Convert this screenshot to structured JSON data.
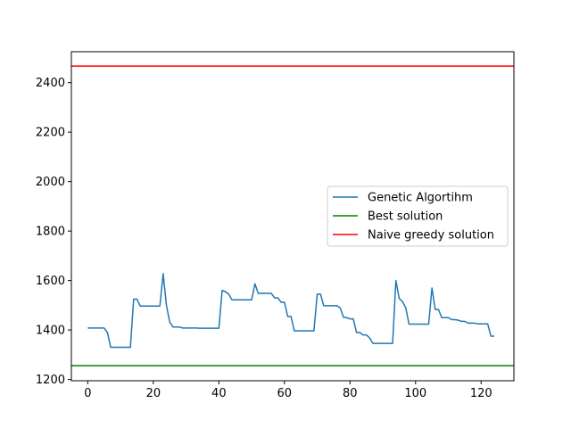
{
  "chart_data": {
    "type": "line",
    "title": "",
    "xlabel": "",
    "ylabel": "",
    "xlim": [
      -5,
      130
    ],
    "ylim": [
      1195,
      2525
    ],
    "xticks": [
      0,
      20,
      40,
      60,
      80,
      100,
      120
    ],
    "yticks": [
      1200,
      1400,
      1600,
      1800,
      2000,
      2200,
      2400
    ],
    "grid": false,
    "legend_position": "center-right",
    "series": [
      {
        "name": "Genetic Algortihm",
        "color": "#1f77b4",
        "kind": "line",
        "x": [
          0,
          1,
          2,
          3,
          4,
          5,
          6,
          7,
          8,
          9,
          10,
          11,
          12,
          13,
          14,
          15,
          16,
          17,
          18,
          19,
          20,
          21,
          22,
          23,
          24,
          25,
          26,
          27,
          28,
          29,
          30,
          31,
          32,
          33,
          34,
          35,
          36,
          37,
          38,
          39,
          40,
          41,
          42,
          43,
          44,
          45,
          46,
          47,
          48,
          49,
          50,
          51,
          52,
          53,
          54,
          55,
          56,
          57,
          58,
          59,
          60,
          61,
          62,
          63,
          64,
          65,
          66,
          67,
          68,
          69,
          70,
          71,
          72,
          73,
          74,
          75,
          76,
          77,
          78,
          79,
          80,
          81,
          82,
          83,
          84,
          85,
          86,
          87,
          88,
          89,
          90,
          91,
          92,
          93,
          94,
          95,
          96,
          97,
          98,
          99,
          100,
          101,
          102,
          103,
          104,
          105,
          106,
          107,
          108,
          109,
          110,
          111,
          112,
          113,
          114,
          115,
          116,
          117,
          118,
          119,
          120,
          121,
          122,
          123,
          124
        ],
        "y": [
          1408,
          1408,
          1408,
          1408,
          1408,
          1408,
          1390,
          1330,
          1330,
          1330,
          1330,
          1330,
          1330,
          1330,
          1525,
          1525,
          1497,
          1497,
          1497,
          1497,
          1497,
          1497,
          1497,
          1628,
          1500,
          1432,
          1412,
          1412,
          1412,
          1408,
          1408,
          1408,
          1408,
          1408,
          1407,
          1407,
          1407,
          1407,
          1407,
          1407,
          1407,
          1560,
          1555,
          1545,
          1522,
          1522,
          1522,
          1522,
          1522,
          1522,
          1522,
          1587,
          1548,
          1548,
          1548,
          1548,
          1548,
          1530,
          1530,
          1512,
          1512,
          1455,
          1455,
          1397,
          1397,
          1397,
          1397,
          1397,
          1397,
          1397,
          1545,
          1545,
          1498,
          1498,
          1498,
          1498,
          1498,
          1490,
          1452,
          1450,
          1445,
          1445,
          1390,
          1390,
          1380,
          1380,
          1368,
          1346,
          1346,
          1346,
          1346,
          1346,
          1346,
          1346,
          1600,
          1528,
          1515,
          1490,
          1424,
          1424,
          1424,
          1424,
          1424,
          1424,
          1424,
          1570,
          1483,
          1483,
          1450,
          1450,
          1450,
          1442,
          1442,
          1440,
          1435,
          1435,
          1428,
          1428,
          1428,
          1425,
          1425,
          1425,
          1425,
          1375,
          1375
        ]
      },
      {
        "name": "Best solution",
        "color": "#008000",
        "kind": "hline",
        "value": 1256
      },
      {
        "name": "Naive greedy solution",
        "color": "#ff0000",
        "kind": "hline",
        "value": 2467
      }
    ]
  }
}
